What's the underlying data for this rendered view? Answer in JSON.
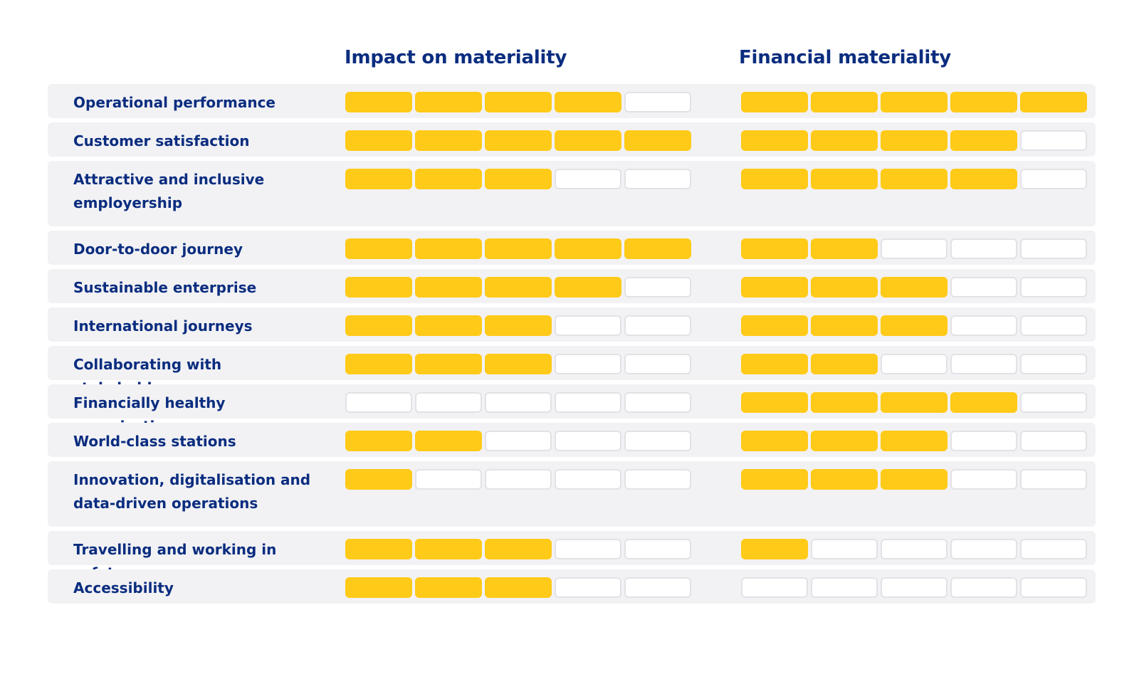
{
  "colors": {
    "filled": "#ffca18",
    "empty": "#ffffff",
    "text": "#0b2d7f",
    "row_bg": "#f2f2f5"
  },
  "chart_data": {
    "type": "table",
    "scale_max": 5,
    "columns": [
      "Impact on materiality",
      "Financial materiality"
    ],
    "rows": [
      {
        "label": "Operational performance",
        "impact": 4,
        "financial": 5
      },
      {
        "label": "Customer satisfaction",
        "impact": 5,
        "financial": 4
      },
      {
        "label": "Attractive and inclusive employership",
        "impact": 3,
        "financial": 4
      },
      {
        "label": "Door-to-door journey",
        "impact": 5,
        "financial": 2
      },
      {
        "label": "Sustainable enterprise",
        "impact": 4,
        "financial": 3
      },
      {
        "label": "International journeys",
        "impact": 3,
        "financial": 3
      },
      {
        "label": "Collaborating with stakeholders",
        "impact": 3,
        "financial": 2
      },
      {
        "label": "Financially healthy organisation",
        "impact": 0,
        "financial": 4
      },
      {
        "label": "World-class stations",
        "impact": 2,
        "financial": 3
      },
      {
        "label": "Innovation, digitalisation and data-driven operations",
        "impact": 1,
        "financial": 3
      },
      {
        "label": "Travelling and working in safety",
        "impact": 3,
        "financial": 1
      },
      {
        "label": "Accessibility",
        "impact": 3,
        "financial": 0
      }
    ]
  }
}
